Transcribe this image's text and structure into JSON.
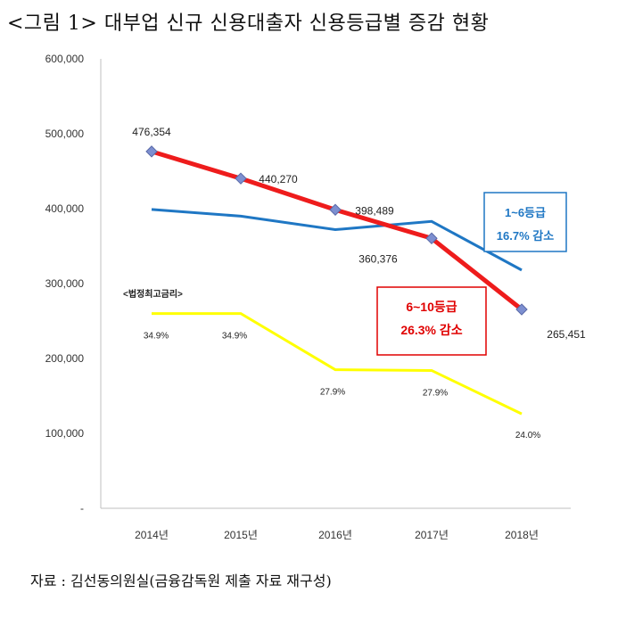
{
  "title": "<그림 1> 대부업 신규 신용대출자 신용등급별 증감 현황",
  "source": "자료 : 김선동의원실(금융감독원 제출 자료 재구성)",
  "chart_data": {
    "type": "line",
    "categories": [
      "2014년",
      "2015년",
      "2016년",
      "2017년",
      "2018년"
    ],
    "y_ticks": [
      "-",
      "100,000",
      "200,000",
      "300,000",
      "400,000",
      "500,000",
      "600,000"
    ],
    "ylim": [
      0,
      600000
    ],
    "series": [
      {
        "name": "6~10등급",
        "color": "#ee1c1c",
        "values": [
          476354,
          440270,
          398489,
          360376,
          265451
        ],
        "labels": [
          "476,354",
          "440,270",
          "398,489",
          "360,376",
          "265,451"
        ]
      },
      {
        "name": "1~6등급",
        "color": "#1f77c4",
        "values": [
          399000,
          390000,
          372000,
          383000,
          318000
        ]
      },
      {
        "name": "<법정최고금리>",
        "color": "#ffff00",
        "values": [
          260000,
          260000,
          185000,
          184000,
          126000
        ],
        "labels": [
          "34.9%",
          "34.9%",
          "27.9%",
          "27.9%",
          "24.0%"
        ]
      }
    ],
    "annotations": {
      "blue_box": [
        "1~6등급",
        "16.7% 감소"
      ],
      "red_box": [
        "6~10등급",
        "26.3% 감소"
      ],
      "rate_label": "<법정최고금리>"
    }
  }
}
